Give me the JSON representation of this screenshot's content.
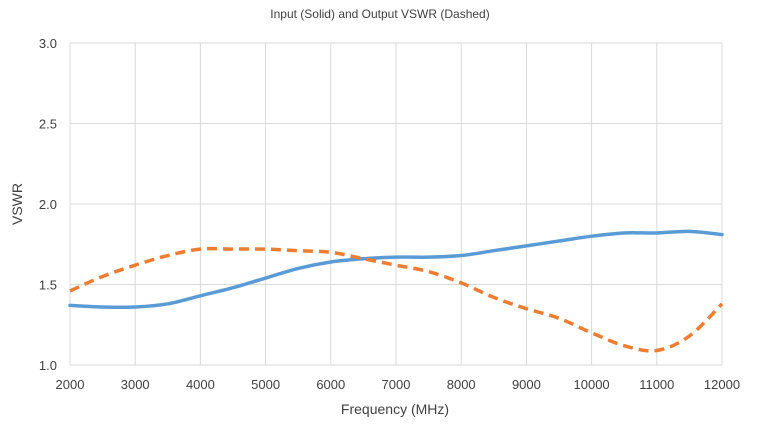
{
  "chart_data": {
    "type": "line",
    "title": "Input (Solid) and Output VSWR (Dashed)",
    "xlabel": "Frequency (MHz)",
    "ylabel": "VSWR",
    "xlim": [
      2000,
      12000
    ],
    "ylim": [
      1.0,
      3.0
    ],
    "xticks": [
      2000,
      3000,
      4000,
      5000,
      6000,
      7000,
      8000,
      9000,
      10000,
      11000,
      12000
    ],
    "yticks": [
      1.0,
      1.5,
      2.0,
      2.5,
      3.0
    ],
    "xtick_labels": [
      "2000",
      "3000",
      "4000",
      "5000",
      "6000",
      "7000",
      "8000",
      "9000",
      "10000",
      "11000",
      "12000"
    ],
    "ytick_labels": [
      "1.0",
      "1.5",
      "2.0",
      "2.5",
      "3.0"
    ],
    "grid": true,
    "legend": "none",
    "series": [
      {
        "style": "solid",
        "color": "#5b9bd5",
        "x": [
          2000,
          2500,
          3000,
          3500,
          4000,
          4500,
          5000,
          5500,
          6000,
          6500,
          7000,
          7500,
          8000,
          8500,
          9000,
          9500,
          10000,
          10500,
          11000,
          11500,
          12000
        ],
        "y": [
          1.37,
          1.36,
          1.36,
          1.38,
          1.43,
          1.48,
          1.54,
          1.6,
          1.64,
          1.66,
          1.67,
          1.67,
          1.68,
          1.71,
          1.74,
          1.77,
          1.8,
          1.82,
          1.82,
          1.83,
          1.81
        ]
      },
      {
        "style": "dashed",
        "color": "#ed7d31",
        "x": [
          2000,
          2500,
          3000,
          3500,
          4000,
          4500,
          5000,
          5500,
          6000,
          6500,
          7000,
          7500,
          8000,
          8500,
          9000,
          9500,
          10000,
          10500,
          11000,
          11500,
          12000
        ],
        "y": [
          1.46,
          1.55,
          1.62,
          1.68,
          1.72,
          1.72,
          1.72,
          1.71,
          1.7,
          1.66,
          1.62,
          1.58,
          1.51,
          1.42,
          1.35,
          1.29,
          1.2,
          1.12,
          1.09,
          1.18,
          1.38
        ]
      }
    ]
  }
}
